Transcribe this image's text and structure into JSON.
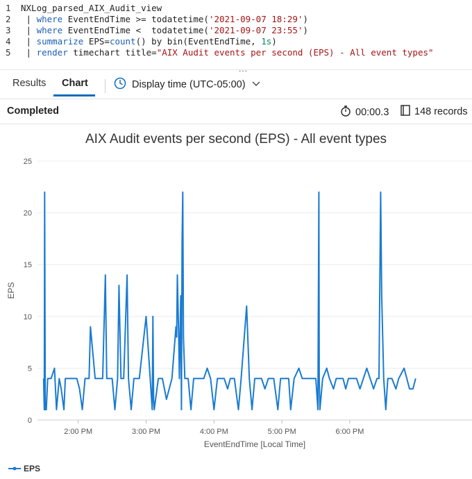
{
  "editor": {
    "lines": [
      {
        "num": "1",
        "segments": [
          {
            "t": "NXLog_parsed_AIX_Audit_view",
            "c": "plain"
          }
        ]
      },
      {
        "num": "2",
        "segments": [
          {
            "t": " | ",
            "c": "plain"
          },
          {
            "t": "where",
            "c": "kw"
          },
          {
            "t": " EventEndTime >= todatetime(",
            "c": "plain"
          },
          {
            "t": "'2021-09-07 18:29'",
            "c": "str"
          },
          {
            "t": ")",
            "c": "plain"
          }
        ]
      },
      {
        "num": "3",
        "segments": [
          {
            "t": " | ",
            "c": "plain"
          },
          {
            "t": "where",
            "c": "kw"
          },
          {
            "t": " EventEndTime <  todatetime(",
            "c": "plain"
          },
          {
            "t": "'2021-09-07 23:55'",
            "c": "str"
          },
          {
            "t": ")",
            "c": "plain"
          }
        ]
      },
      {
        "num": "4",
        "segments": [
          {
            "t": " | ",
            "c": "plain"
          },
          {
            "t": "summarize",
            "c": "kw"
          },
          {
            "t": " EPS=",
            "c": "plain"
          },
          {
            "t": "count",
            "c": "kw"
          },
          {
            "t": "() by bin(EventEndTime, ",
            "c": "plain"
          },
          {
            "t": "1s",
            "c": "num"
          },
          {
            "t": ")",
            "c": "plain"
          }
        ]
      },
      {
        "num": "5",
        "segments": [
          {
            "t": " | ",
            "c": "plain"
          },
          {
            "t": "render",
            "c": "kw"
          },
          {
            "t": " timechart title=",
            "c": "plain"
          },
          {
            "t": "\"AIX Audit events per second (EPS) - All event types\"",
            "c": "str"
          }
        ]
      }
    ],
    "more": "..."
  },
  "tabs": {
    "results": "Results",
    "chart": "Chart",
    "display_time": "Display time (UTC-05:00)"
  },
  "status": {
    "state": "Completed",
    "elapsed": "00:00.3",
    "records": "148 records"
  },
  "icons": {
    "clock": "clock-icon",
    "stopwatch": "stopwatch-icon",
    "records": "records-icon",
    "chevron": "chevron-down-icon"
  },
  "colors": {
    "accent": "#0f6cbd",
    "series": "#1a7bd1"
  },
  "chart_data": {
    "type": "line",
    "title": "AIX Audit events per second (EPS) - All event types",
    "xlabel": "EventEndTime [Local Time]",
    "ylabel": "EPS",
    "ylim": [
      0,
      25
    ],
    "xlim": [
      1.4,
      7.8
    ],
    "yticks": [
      0,
      5,
      10,
      15,
      20,
      25
    ],
    "xticks": [
      {
        "v": 2,
        "label": "2:00 PM"
      },
      {
        "v": 3,
        "label": "3:00 PM"
      },
      {
        "v": 4,
        "label": "4:00 PM"
      },
      {
        "v": 5,
        "label": "5:00 PM"
      },
      {
        "v": 6,
        "label": "6:00 PM"
      }
    ],
    "legend": "bottom-left",
    "series": [
      {
        "name": "EPS",
        "points": [
          [
            1.49,
            4
          ],
          [
            1.5,
            1
          ],
          [
            1.505,
            22
          ],
          [
            1.51,
            11
          ],
          [
            1.515,
            1
          ],
          [
            1.53,
            1
          ],
          [
            1.55,
            4
          ],
          [
            1.6,
            4
          ],
          [
            1.65,
            5
          ],
          [
            1.68,
            1
          ],
          [
            1.72,
            4
          ],
          [
            1.75,
            3
          ],
          [
            1.79,
            1
          ],
          [
            1.81,
            4
          ],
          [
            1.9,
            4
          ],
          [
            1.98,
            4
          ],
          [
            2.02,
            3
          ],
          [
            2.06,
            1
          ],
          [
            2.1,
            4
          ],
          [
            2.16,
            4
          ],
          [
            2.18,
            9
          ],
          [
            2.25,
            4
          ],
          [
            2.32,
            4
          ],
          [
            2.36,
            4
          ],
          [
            2.4,
            14
          ],
          [
            2.42,
            4
          ],
          [
            2.5,
            4
          ],
          [
            2.54,
            1
          ],
          [
            2.58,
            4
          ],
          [
            2.6,
            13
          ],
          [
            2.63,
            4
          ],
          [
            2.67,
            4
          ],
          [
            2.72,
            14
          ],
          [
            2.74,
            4
          ],
          [
            2.78,
            1
          ],
          [
            2.82,
            4
          ],
          [
            2.9,
            4
          ],
          [
            3.0,
            10
          ],
          [
            3.06,
            4
          ],
          [
            3.09,
            1
          ],
          [
            3.1,
            10
          ],
          [
            3.11,
            2
          ],
          [
            3.12,
            1
          ],
          [
            3.18,
            4
          ],
          [
            3.24,
            4
          ],
          [
            3.3,
            2
          ],
          [
            3.38,
            4
          ],
          [
            3.44,
            9
          ],
          [
            3.45,
            8
          ],
          [
            3.46,
            14
          ],
          [
            3.48,
            8
          ],
          [
            3.49,
            4
          ],
          [
            3.51,
            12
          ],
          [
            3.52,
            1
          ],
          [
            3.53,
            17
          ],
          [
            3.54,
            22
          ],
          [
            3.55,
            8
          ],
          [
            3.57,
            4
          ],
          [
            3.62,
            4
          ],
          [
            3.66,
            1
          ],
          [
            3.7,
            4
          ],
          [
            3.8,
            4
          ],
          [
            3.85,
            4
          ],
          [
            3.9,
            5
          ],
          [
            3.95,
            4
          ],
          [
            4.0,
            1
          ],
          [
            4.05,
            4
          ],
          [
            4.1,
            4
          ],
          [
            4.15,
            4
          ],
          [
            4.2,
            3
          ],
          [
            4.24,
            4
          ],
          [
            4.3,
            4
          ],
          [
            4.36,
            1
          ],
          [
            4.4,
            4
          ],
          [
            4.48,
            11
          ],
          [
            4.52,
            4
          ],
          [
            4.56,
            1
          ],
          [
            4.6,
            4
          ],
          [
            4.7,
            4
          ],
          [
            4.75,
            3
          ],
          [
            4.8,
            4
          ],
          [
            4.88,
            4
          ],
          [
            4.94,
            1
          ],
          [
            4.98,
            4
          ],
          [
            5.06,
            4
          ],
          [
            5.1,
            4
          ],
          [
            5.13,
            1
          ],
          [
            5.18,
            4
          ],
          [
            5.25,
            5
          ],
          [
            5.3,
            4
          ],
          [
            5.36,
            4
          ],
          [
            5.4,
            4
          ],
          [
            5.45,
            4
          ],
          [
            5.5,
            4
          ],
          [
            5.53,
            1
          ],
          [
            5.545,
            22
          ],
          [
            5.55,
            4
          ],
          [
            5.56,
            1
          ],
          [
            5.6,
            4
          ],
          [
            5.66,
            5
          ],
          [
            5.7,
            4
          ],
          [
            5.76,
            3
          ],
          [
            5.8,
            4
          ],
          [
            5.86,
            4
          ],
          [
            5.9,
            4
          ],
          [
            5.94,
            3
          ],
          [
            5.98,
            4
          ],
          [
            6.1,
            4
          ],
          [
            6.15,
            3
          ],
          [
            6.2,
            4
          ],
          [
            6.25,
            5
          ],
          [
            6.3,
            4
          ],
          [
            6.35,
            3
          ],
          [
            6.4,
            4
          ],
          [
            6.43,
            4
          ],
          [
            6.455,
            22
          ],
          [
            6.47,
            12
          ],
          [
            6.5,
            4
          ],
          [
            6.53,
            1
          ],
          [
            6.56,
            4
          ],
          [
            6.62,
            4
          ],
          [
            6.68,
            3
          ],
          [
            6.72,
            4
          ],
          [
            6.8,
            5
          ],
          [
            6.84,
            4
          ],
          [
            6.88,
            3
          ],
          [
            6.93,
            3
          ],
          [
            6.97,
            4
          ]
        ]
      }
    ]
  }
}
